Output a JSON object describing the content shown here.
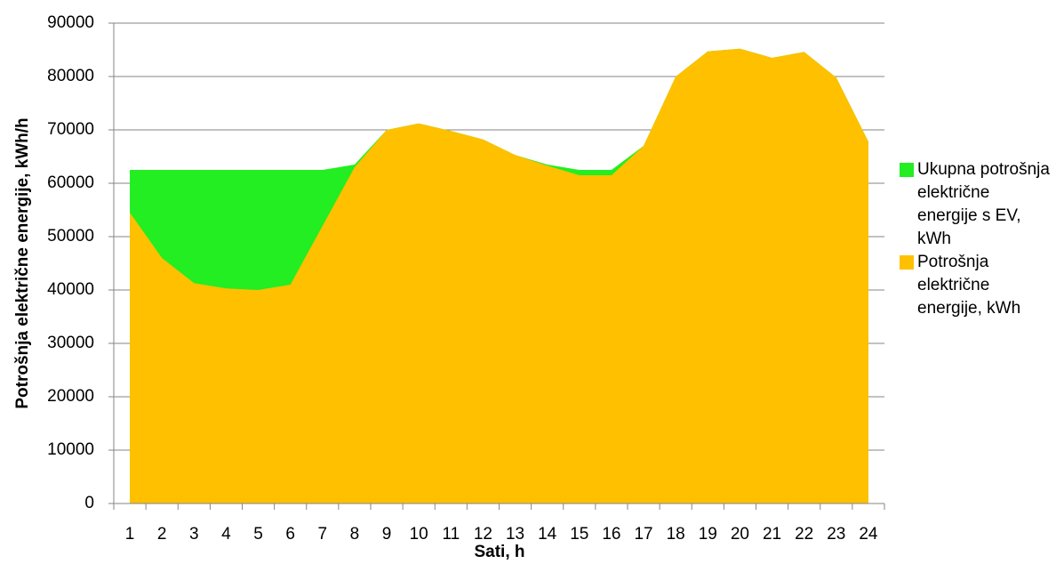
{
  "chart_data": {
    "type": "area",
    "xlabel": "Sati, h",
    "ylabel": "Potrošnja električne energije, kWh/h",
    "categories": [
      "1",
      "2",
      "3",
      "4",
      "5",
      "6",
      "7",
      "8",
      "9",
      "10",
      "11",
      "12",
      "13",
      "14",
      "15",
      "16",
      "17",
      "18",
      "19",
      "20",
      "21",
      "22",
      "23",
      "24"
    ],
    "series": [
      {
        "name": "Ukupna potrošnja električne energije s EV, kWh",
        "color": "#22ee22",
        "values": [
          62500,
          62500,
          62500,
          62500,
          62500,
          62500,
          62500,
          63500,
          70000,
          71200,
          69800,
          68200,
          65300,
          63500,
          62500,
          62500,
          67000,
          80000,
          84700,
          85200,
          83500,
          84600,
          79800,
          67800
        ]
      },
      {
        "name": "Potrošnja električne energije, kWh",
        "color": "#ffc000",
        "values": [
          54500,
          46000,
          41300,
          40300,
          40000,
          41000,
          52000,
          63000,
          70000,
          71200,
          69800,
          68200,
          65300,
          63300,
          61500,
          61500,
          67000,
          80000,
          84700,
          85200,
          83500,
          84600,
          79800,
          67800
        ]
      }
    ],
    "ylim": [
      0,
      90000
    ],
    "yticks": [
      0,
      10000,
      20000,
      30000,
      40000,
      50000,
      60000,
      70000,
      80000,
      90000
    ],
    "grid": true,
    "legend": "right"
  }
}
